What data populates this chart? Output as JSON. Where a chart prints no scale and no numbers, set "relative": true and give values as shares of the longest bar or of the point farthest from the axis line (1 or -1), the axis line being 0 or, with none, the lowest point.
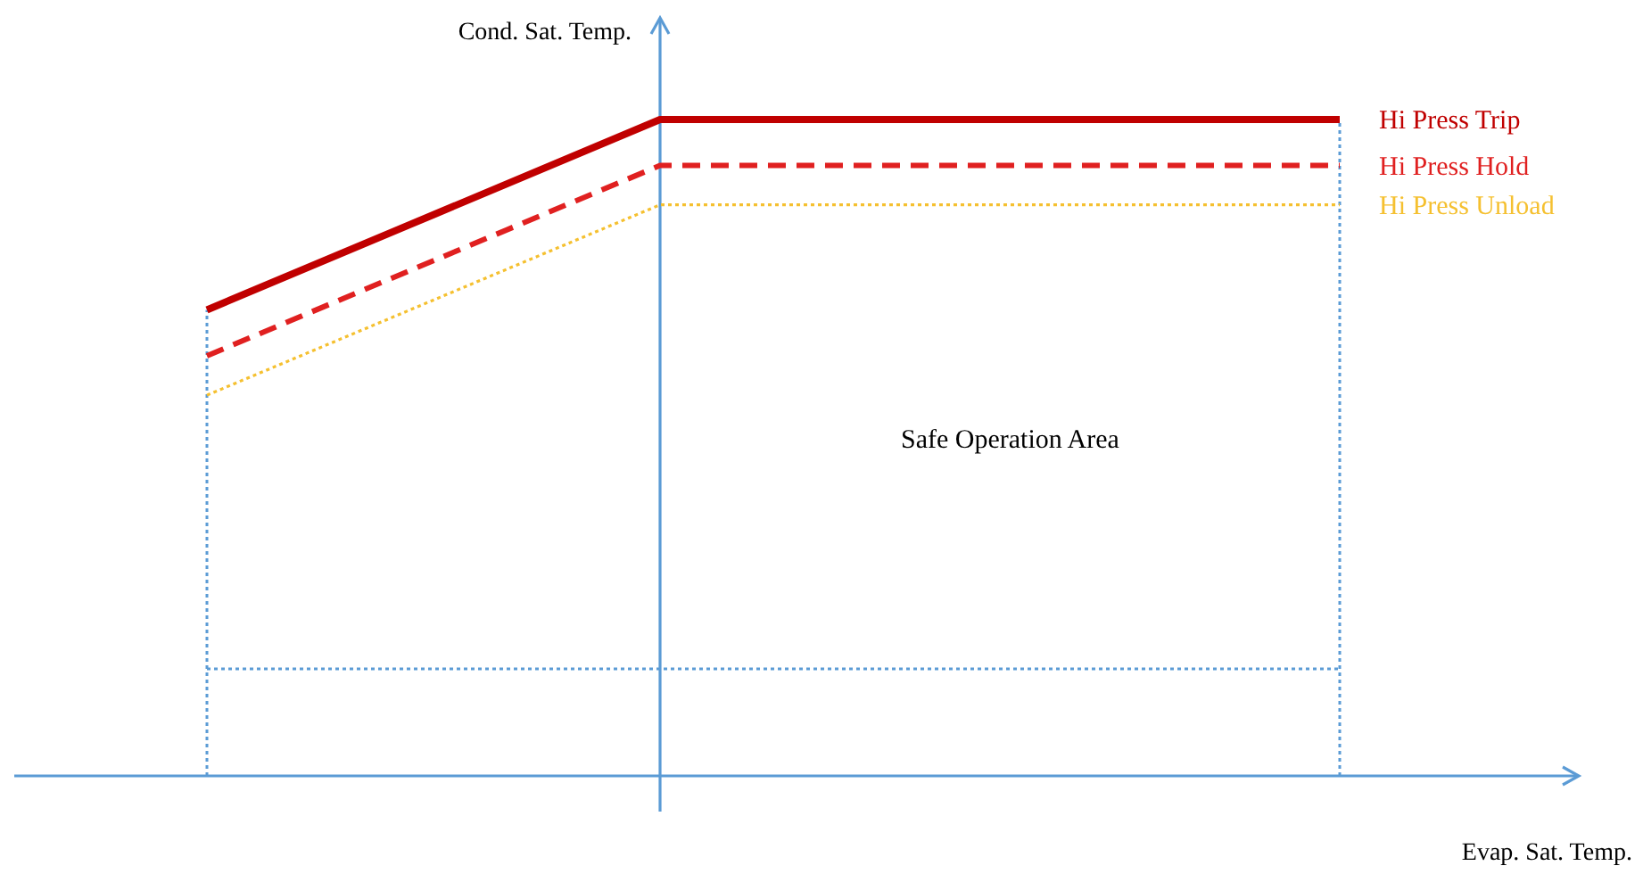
{
  "chart_data": {
    "type": "line",
    "relative": true,
    "xlabel": "Evap. Sat. Temp.",
    "ylabel": "Cond. Sat. Temp.",
    "categories": [
      null,
      null,
      null,
      null,
      null,
      null
    ],
    "grid": false,
    "marker": "none",
    "series": [
      {
        "name": "Hi Press Trip",
        "color": "#c00000",
        "values": [
          0.71,
          0.855,
          1,
          1,
          1,
          1
        ],
        "line_style": "solid"
      },
      {
        "name": "Hi Press Hold",
        "color": "#e02020",
        "values": [
          0.64,
          0.785,
          0.93,
          0.93,
          0.93,
          0.93
        ],
        "line_style": "dashed"
      },
      {
        "name": "Hi Press Unload",
        "color": "#f5c030",
        "values": [
          0.58,
          0.725,
          0.87,
          0.87,
          0.87,
          0.87
        ],
        "line_style": "dotted"
      }
    ],
    "annotations": [
      "Safe Operation Area"
    ]
  }
}
